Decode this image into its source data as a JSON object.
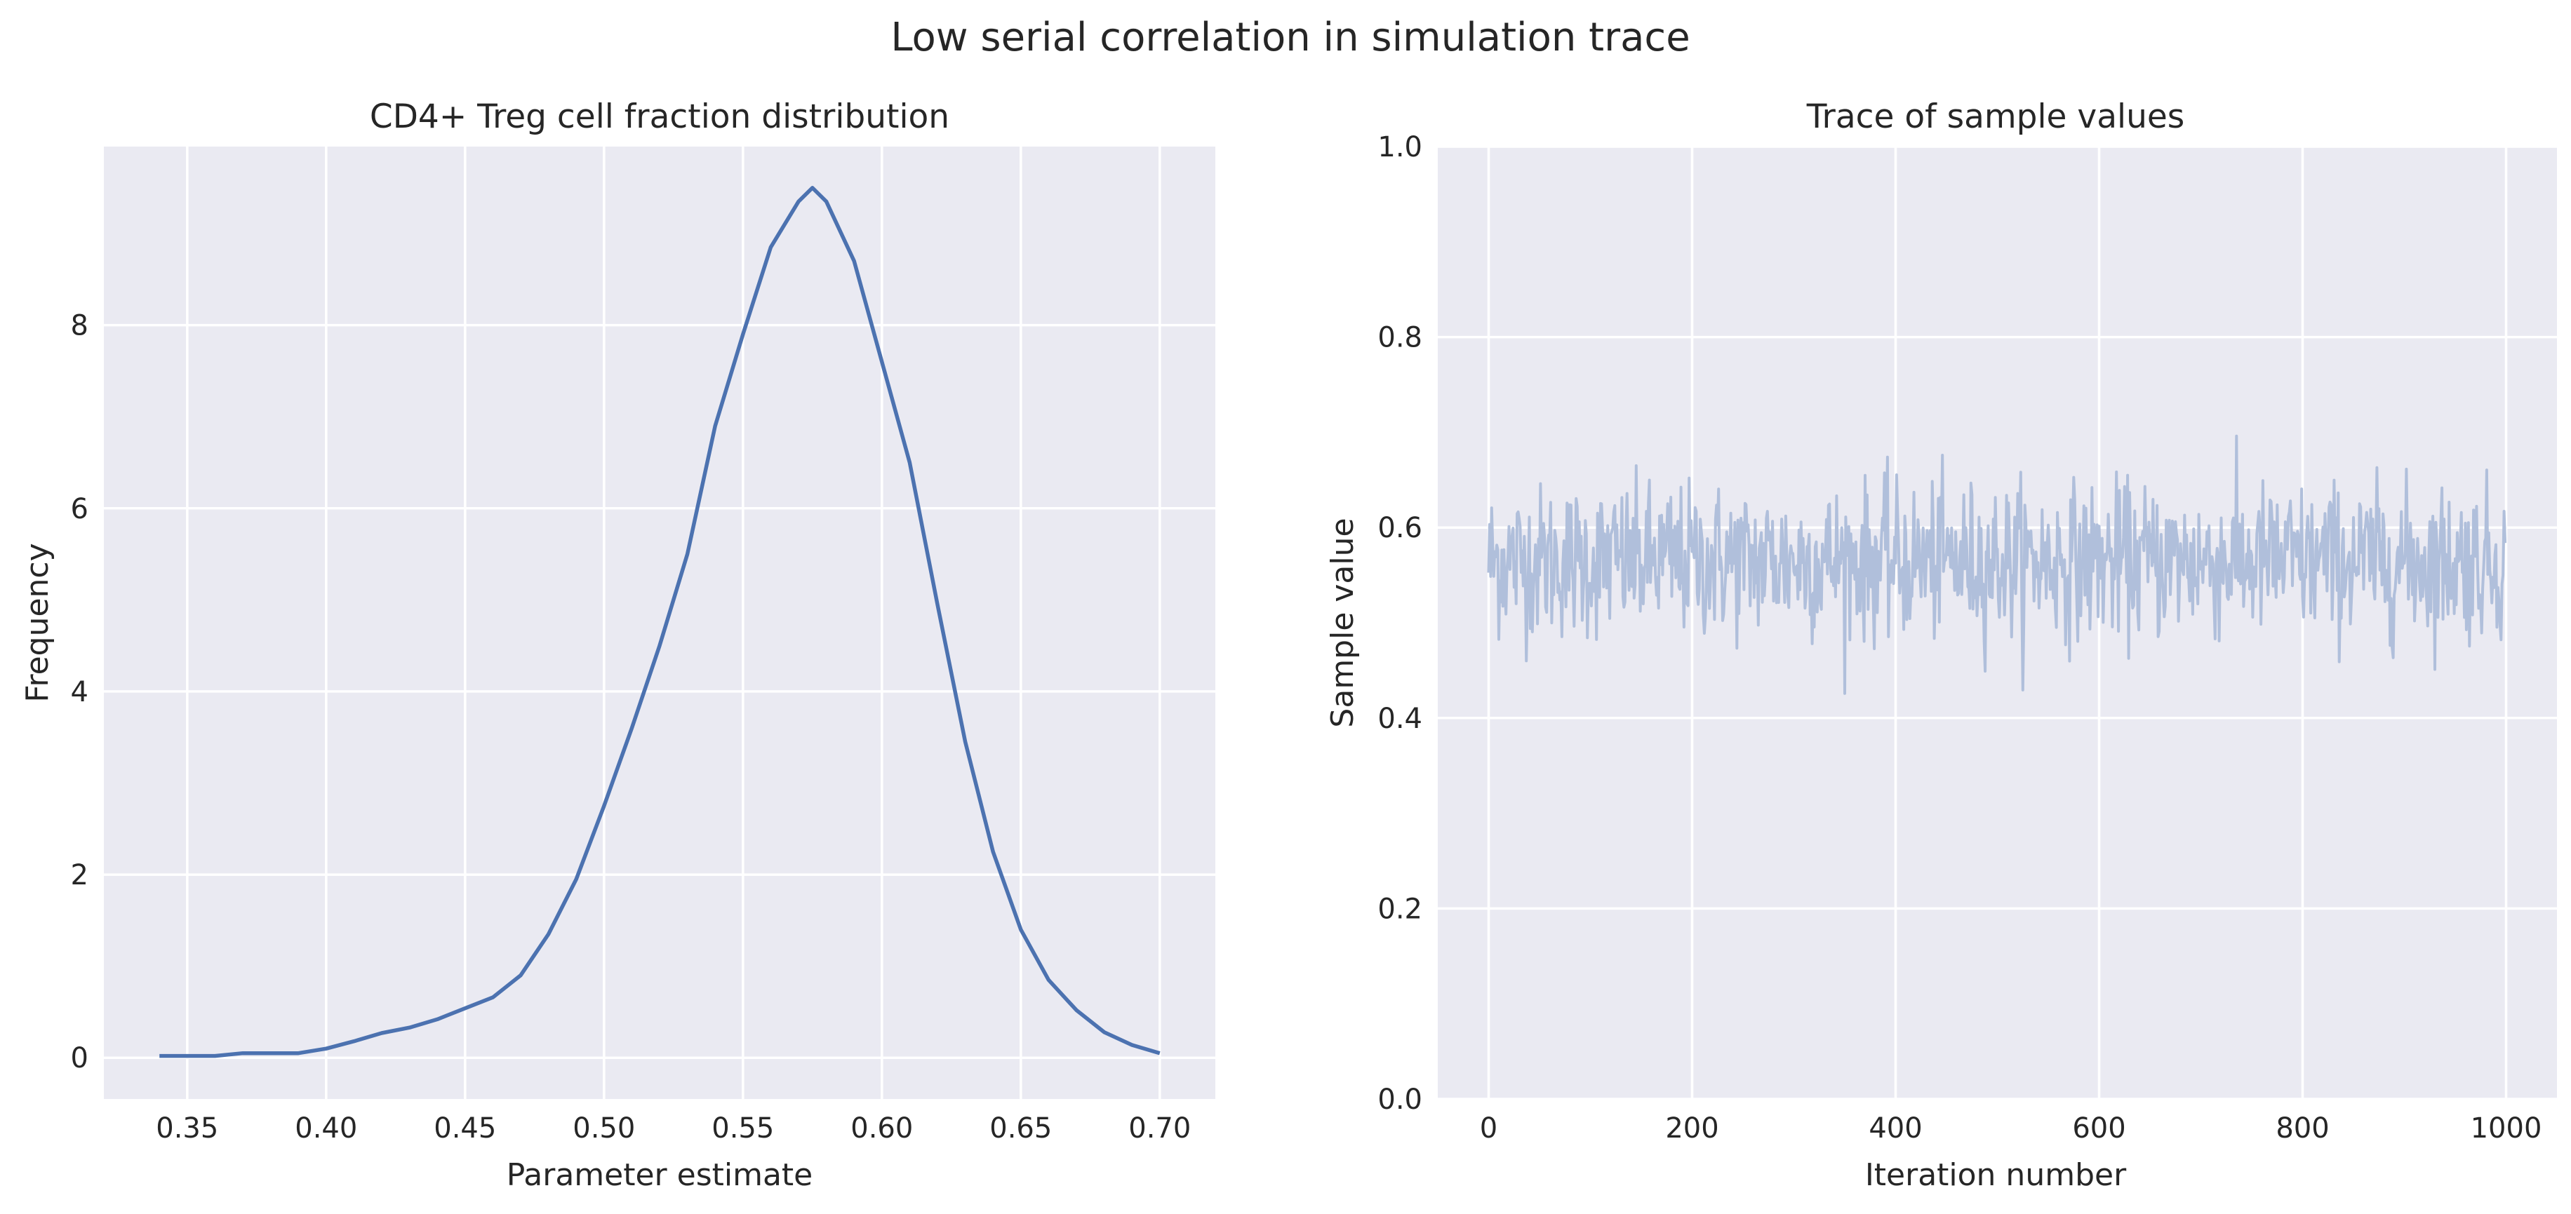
{
  "figure": {
    "title": "Low serial correlation in simulation trace"
  },
  "colors": {
    "axes_bg": "#eaeaf2",
    "grid": "#ffffff",
    "kde_line": "#4c72b0",
    "trace_line": "#b0bfdb",
    "text": "#262626"
  },
  "chart_data": [
    {
      "type": "line",
      "title": "CD4+ Treg cell fraction distribution",
      "xlabel": "Parameter estimate",
      "ylabel": "Frequency",
      "xlim": [
        0.32,
        0.72
      ],
      "ylim": [
        -0.45,
        9.95
      ],
      "xticks": [
        0.35,
        0.4,
        0.45,
        0.5,
        0.55,
        0.6,
        0.65,
        0.7
      ],
      "xtick_labels": [
        "0.35",
        "0.40",
        "0.45",
        "0.50",
        "0.55",
        "0.60",
        "0.65",
        "0.70"
      ],
      "yticks": [
        0,
        2,
        4,
        6,
        8
      ],
      "ytick_labels": [
        "0",
        "2",
        "4",
        "6",
        "8"
      ],
      "grid": true,
      "series": [
        {
          "x": [
            0.34,
            0.35,
            0.36,
            0.37,
            0.38,
            0.39,
            0.4,
            0.41,
            0.42,
            0.43,
            0.44,
            0.45,
            0.46,
            0.47,
            0.48,
            0.49,
            0.5,
            0.51,
            0.52,
            0.53,
            0.54,
            0.55,
            0.56,
            0.57,
            0.575,
            0.58,
            0.59,
            0.6,
            0.61,
            0.62,
            0.63,
            0.64,
            0.65,
            0.66,
            0.67,
            0.68,
            0.69,
            0.7
          ],
          "y": [
            0.02,
            0.02,
            0.02,
            0.05,
            0.05,
            0.05,
            0.1,
            0.18,
            0.27,
            0.33,
            0.42,
            0.54,
            0.66,
            0.9,
            1.35,
            1.95,
            2.75,
            3.6,
            4.5,
            5.5,
            6.9,
            7.9,
            8.85,
            9.35,
            9.5,
            9.35,
            8.7,
            7.6,
            6.5,
            4.95,
            3.45,
            2.25,
            1.4,
            0.85,
            0.52,
            0.28,
            0.14,
            0.05
          ]
        }
      ]
    },
    {
      "type": "line",
      "title": "Trace of sample values",
      "xlabel": "Iteration number",
      "ylabel": "Sample value",
      "xlim": [
        -50,
        1050
      ],
      "ylim": [
        0.0,
        1.0
      ],
      "xticks": [
        0,
        200,
        400,
        600,
        800,
        1000
      ],
      "xtick_labels": [
        "0",
        "200",
        "400",
        "600",
        "800",
        "1000"
      ],
      "yticks": [
        0.0,
        0.2,
        0.4,
        0.6,
        0.8,
        1.0
      ],
      "ytick_labels": [
        "0.0",
        "0.2",
        "0.4",
        "0.6",
        "0.8",
        "1.0"
      ],
      "grid": true,
      "series": [
        {
          "n_samples": 1000,
          "mean": 0.565,
          "sd": 0.04,
          "min": 0.34,
          "max": 0.7
        }
      ]
    }
  ]
}
